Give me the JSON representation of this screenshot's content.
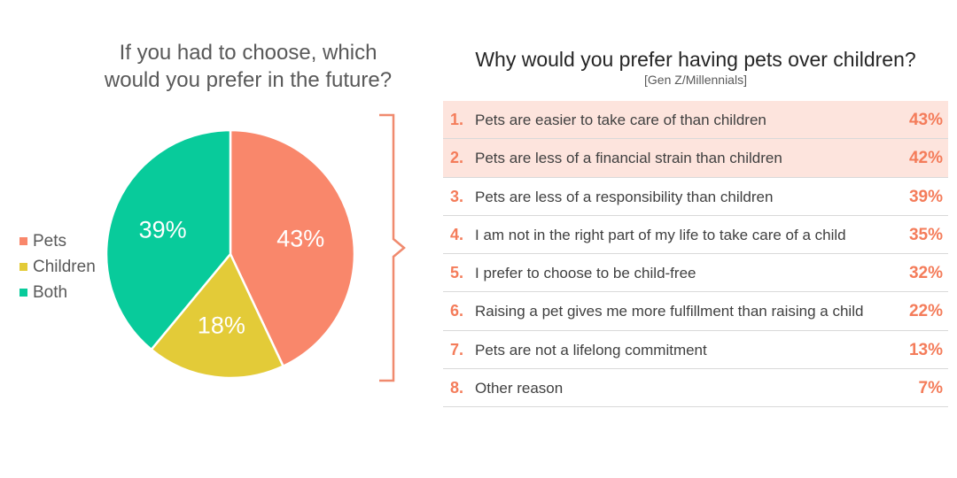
{
  "left_chart": {
    "title_line1": "If you had to choose, which",
    "title_line2": "would you prefer in the future?"
  },
  "chart_data": [
    {
      "type": "pie",
      "title": "If you had to choose, which would you prefer in the future?",
      "labels": [
        "Pets",
        "Children",
        "Both"
      ],
      "values": [
        43,
        18,
        39
      ],
      "data_labels": [
        "43%",
        "18%",
        "39%"
      ],
      "colors": [
        "#f9876b",
        "#e3cb38",
        "#08cb9b"
      ],
      "legend_position": "left"
    },
    {
      "type": "table",
      "title": "Why would you prefer having pets over children?",
      "subtitle": "[Gen Z/Millennials]",
      "rows": [
        {
          "rank": "1.",
          "reason": "Pets are easier to take care of than children",
          "value": 43,
          "label": "43%",
          "highlight": true
        },
        {
          "rank": "2.",
          "reason": "Pets are less of a financial strain than children",
          "value": 42,
          "label": "42%",
          "highlight": true
        },
        {
          "rank": "3.",
          "reason": "Pets are less of a responsibility than children",
          "value": 39,
          "label": "39%",
          "highlight": false
        },
        {
          "rank": "4.",
          "reason": "I am not in the right part of my life to take care of a child",
          "value": 35,
          "label": "35%",
          "highlight": false
        },
        {
          "rank": "5.",
          "reason": "I prefer to choose to be child-free",
          "value": 32,
          "label": "32%",
          "highlight": false
        },
        {
          "rank": "6.",
          "reason": "Raising a pet gives me more fulfillment than raising a child",
          "value": 22,
          "label": "22%",
          "highlight": false
        },
        {
          "rank": "7.",
          "reason": "Pets are not a lifelong commitment",
          "value": 13,
          "label": "13%",
          "highlight": false
        },
        {
          "rank": "8.",
          "reason": "Other reason",
          "value": 7,
          "label": "7%",
          "highlight": false
        }
      ]
    }
  ],
  "colors": {
    "accent": "#f47c5a",
    "highlight_row": "#fde4dd",
    "bracket": "#f08a6e"
  }
}
